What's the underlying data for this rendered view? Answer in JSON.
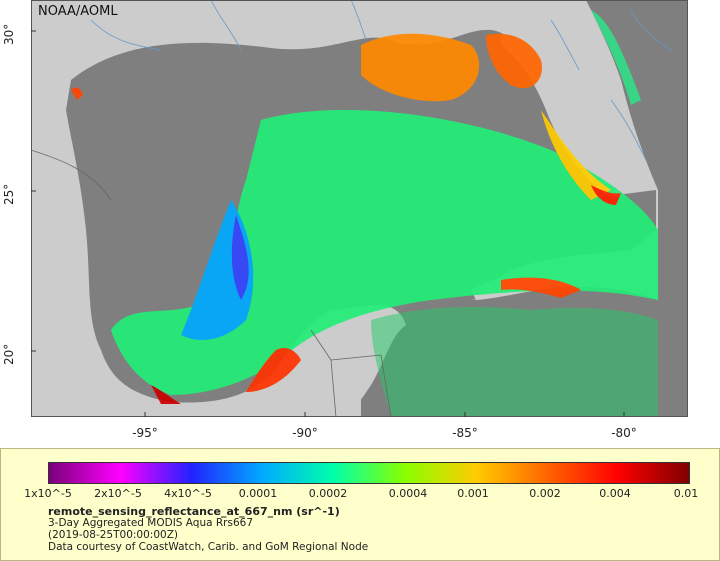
{
  "map": {
    "credit_label": "NOAA/AOML",
    "x_ticks": [
      "-95°",
      "-90°",
      "-85°",
      "-80°"
    ],
    "y_ticks": [
      "30°",
      "25°",
      "20°"
    ],
    "colors": {
      "ocean_no_data": "#7f7f7f",
      "land": "#cccccc",
      "border": "#666666",
      "river": "#6699cc"
    }
  },
  "legend": {
    "scale_labels": [
      "1x10^-5",
      "2x10^-5",
      "4x10^-5",
      "0.0001",
      "0.0002",
      "0.0004",
      "0.001",
      "0.002",
      "0.004",
      "0.01"
    ],
    "scale": "log",
    "colormap": [
      "#7a007a",
      "#ff00ff",
      "#2222ff",
      "#00aaff",
      "#00ffaa",
      "#88ff00",
      "#ffcc00",
      "#ff6600",
      "#ff0000",
      "#800000"
    ],
    "variable": "remote_sensing_reflectance_at_667_nm (sr^-1)",
    "line1": "3-Day Aggregated MODIS Aqua Rrs667",
    "line2": "(2019-08-25T00:00:00Z)",
    "line3": "Data courtesy of CoastWatch, Carib. and GoM Regional Node"
  }
}
